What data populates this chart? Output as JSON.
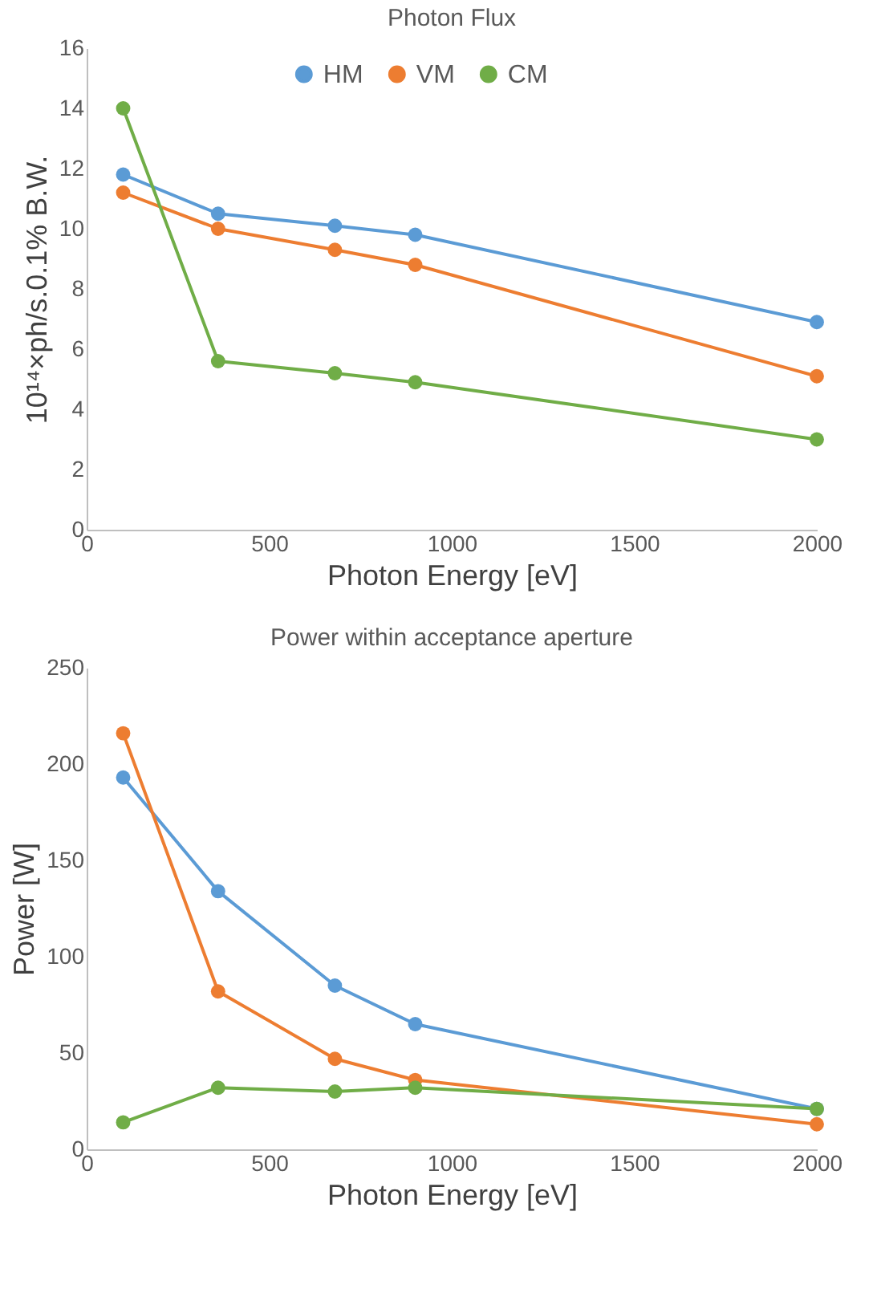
{
  "chart_data": [
    {
      "type": "line",
      "title": "Photon Flux",
      "xlabel": "Photon Energy [eV]",
      "ylabel": "10¹⁴×ph/s.0.1% B.W.",
      "x": [
        100,
        360,
        680,
        900,
        2000
      ],
      "xlim": [
        0,
        2000
      ],
      "xticks": [
        0,
        500,
        1000,
        1500,
        2000
      ],
      "ylim": [
        0,
        16
      ],
      "yticks": [
        0,
        2,
        4,
        6,
        8,
        10,
        12,
        14,
        16
      ],
      "grid": false,
      "legend": "top",
      "marker": "circle",
      "series": [
        {
          "name": "HM",
          "color": "#5b9bd5",
          "values": [
            11.8,
            10.5,
            10.1,
            9.8,
            6.9
          ]
        },
        {
          "name": "VM",
          "color": "#ed7d31",
          "values": [
            11.2,
            10.0,
            9.3,
            8.8,
            5.1
          ]
        },
        {
          "name": "CM",
          "color": "#70ad47",
          "values": [
            14.0,
            5.6,
            5.2,
            4.9,
            3.0
          ]
        }
      ]
    },
    {
      "type": "line",
      "title": "Power within acceptance aperture",
      "xlabel": "Photon Energy [eV]",
      "ylabel": "Power [W]",
      "x": [
        100,
        360,
        680,
        900,
        2000
      ],
      "xlim": [
        0,
        2000
      ],
      "xticks": [
        0,
        500,
        1000,
        1500,
        2000
      ],
      "ylim": [
        0,
        250
      ],
      "yticks": [
        0,
        50,
        100,
        150,
        200,
        250
      ],
      "grid": false,
      "legend": "top",
      "marker": "circle",
      "series": [
        {
          "name": "HM",
          "color": "#5b9bd5",
          "values": [
            193,
            134,
            85,
            65,
            21
          ]
        },
        {
          "name": "VM",
          "color": "#ed7d31",
          "values": [
            216,
            82,
            47,
            36,
            13
          ]
        },
        {
          "name": "CM",
          "color": "#70ad47",
          "values": [
            14,
            32,
            30,
            32,
            21
          ]
        }
      ]
    }
  ]
}
